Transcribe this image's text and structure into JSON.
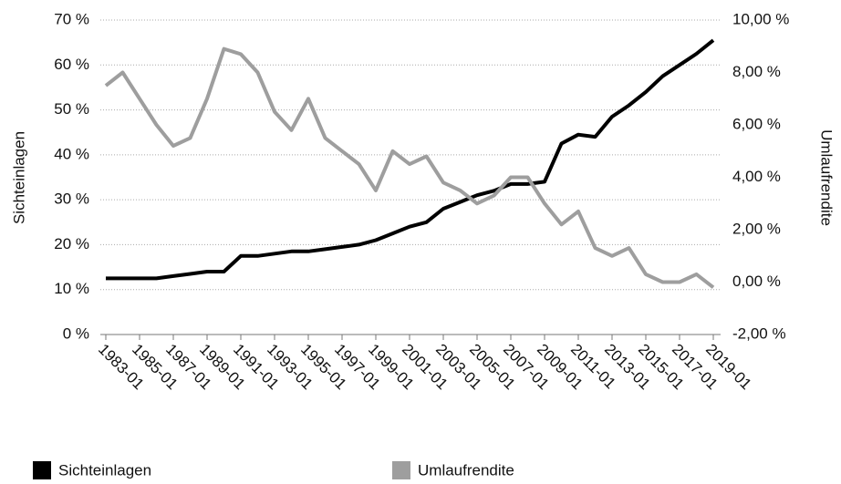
{
  "chart_data": {
    "type": "line",
    "categories": [
      "1983-01",
      null,
      "1985-01",
      null,
      "1987-01",
      null,
      "1989-01",
      null,
      "1991-01",
      null,
      "1993-01",
      null,
      "1995-01",
      null,
      "1997-01",
      null,
      "1999-01",
      null,
      "2001-01",
      null,
      "2003-01",
      null,
      "2005-01",
      null,
      "2007-01",
      null,
      "2009-01",
      null,
      "2011-01",
      null,
      "2013-01",
      null,
      "2015-01",
      null,
      "2017-01",
      null,
      "2019-01"
    ],
    "series": [
      {
        "name": "Sichteinlagen",
        "color": "#000000",
        "values": [
          12.5,
          12.5,
          12.5,
          12.5,
          13,
          13.5,
          14,
          14,
          17.5,
          17.5,
          18,
          18.5,
          18.5,
          19,
          19.5,
          20,
          21,
          22.5,
          24,
          25,
          28,
          29.5,
          31,
          32,
          33.5,
          33.5,
          34,
          42.5,
          44.5,
          44,
          48.5,
          51,
          54,
          57.5,
          60,
          62.5,
          65.5
        ]
      },
      {
        "name": "Umlaufrendite",
        "color": "#9e9e9e",
        "axis": "y2",
        "values": [
          7.5,
          8.0,
          7.0,
          6.0,
          5.2,
          5.5,
          7.0,
          8.9,
          8.7,
          8.0,
          6.5,
          5.8,
          7.0,
          5.5,
          5.0,
          4.5,
          3.5,
          5.0,
          4.5,
          4.8,
          3.8,
          3.5,
          3.0,
          3.3,
          4.0,
          4.0,
          3.0,
          2.2,
          2.7,
          1.3,
          1.0,
          1.3,
          0.3,
          0.0,
          0.0,
          0.3,
          -0.2
        ]
      }
    ],
    "y_label": "Sichteinlagen",
    "y2_label": "Umlaufrendite",
    "ylim": [
      0,
      70
    ],
    "yticks": [
      {
        "value": 0,
        "label": "0 %"
      },
      {
        "value": 10,
        "label": "10 %"
      },
      {
        "value": 20,
        "label": "20 %"
      },
      {
        "value": 30,
        "label": "30 %"
      },
      {
        "value": 40,
        "label": "40 %"
      },
      {
        "value": 50,
        "label": "50 %"
      },
      {
        "value": 60,
        "label": "60 %"
      },
      {
        "value": 70,
        "label": "70 %"
      }
    ],
    "y2lim": [
      -2,
      10
    ],
    "y2ticks": [
      {
        "value": -2,
        "label": "-2,00 %"
      },
      {
        "value": 0,
        "label": "0,00 %"
      },
      {
        "value": 2,
        "label": "2,00 %"
      },
      {
        "value": 4,
        "label": "4,00 %"
      },
      {
        "value": 6,
        "label": "6,00 %"
      },
      {
        "value": 8,
        "label": "8,00 %"
      },
      {
        "value": 10,
        "label": "10,00 %"
      }
    ],
    "grid": true
  }
}
